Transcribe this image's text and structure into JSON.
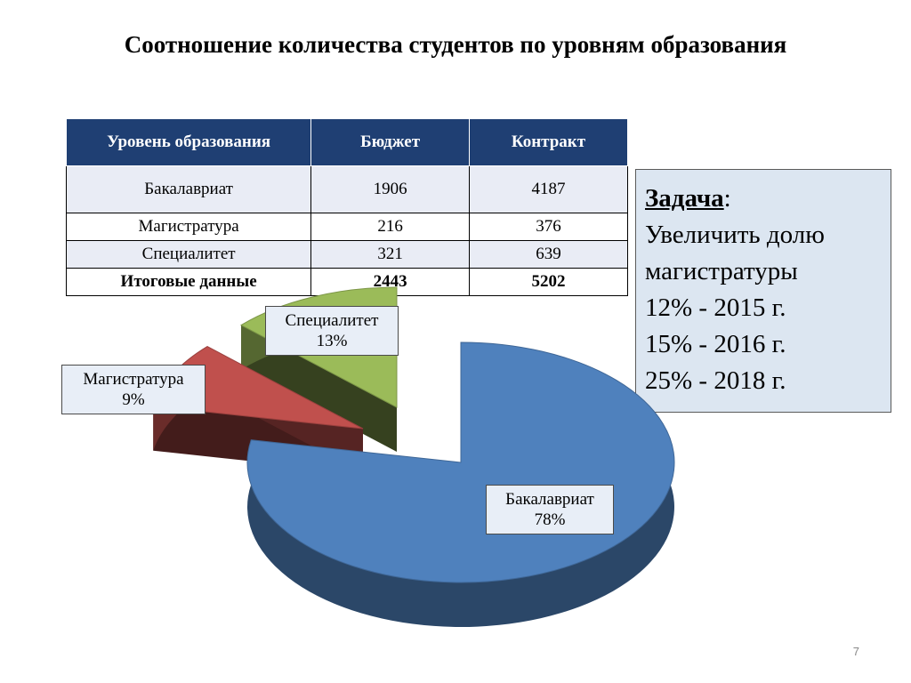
{
  "title": "Соотношение количества студентов по уровням образования",
  "table": {
    "headers": [
      "Уровень образования",
      "Бюджет",
      "Контракт"
    ],
    "rows": [
      [
        "Бакалавриат",
        "1906",
        "4187"
      ],
      [
        "Магистратура",
        "216",
        "376"
      ],
      [
        "Специалитет",
        "321",
        "639"
      ]
    ],
    "total": [
      "Итоговые данные",
      "2443",
      "5202"
    ]
  },
  "task": {
    "heading": "Задача",
    "colon": ":",
    "lines": [
      "Увеличить долю магистратуры",
      "12% - 2015 г.",
      "15% - 2016 г.",
      "25% - 2018 г."
    ]
  },
  "chart_data": {
    "type": "pie",
    "categories": [
      "Бакалавриат",
      "Магистратура",
      "Специалитет"
    ],
    "values": [
      78,
      9,
      13
    ],
    "value_labels": [
      "78%",
      "9%",
      "13%"
    ],
    "colors": [
      "#4f81bd",
      "#c0504d",
      "#9bbb59"
    ],
    "exploded": true,
    "three_d": true
  },
  "page_number": "7"
}
